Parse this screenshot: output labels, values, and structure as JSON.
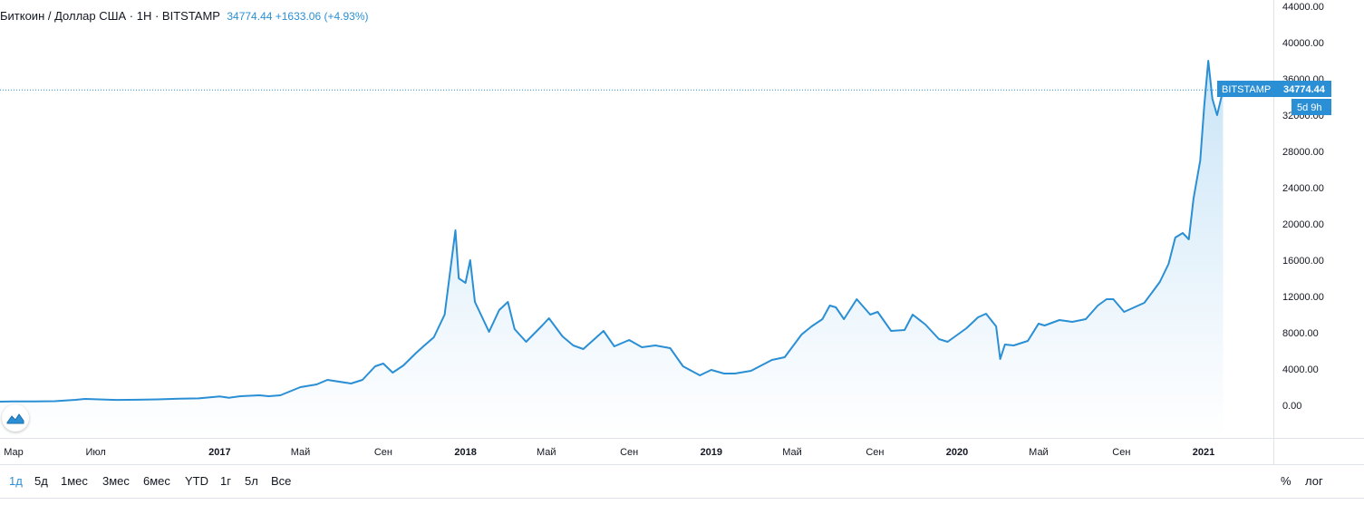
{
  "legend": {
    "symbol": "Биткоин / Доллар США · 1Н · BITSTAMP",
    "values": "34774.44 +1633.06 (+4.93%)"
  },
  "colors": {
    "line": "#2a8fd4",
    "fill_top": "#c9e4f7",
    "fill_bottom": "#ffffff",
    "label_bg": "#2a8fd4",
    "axis_border": "#e0e3eb"
  },
  "price_label": {
    "exchange": "BITSTAMP",
    "price": "34774.44",
    "countdown": "5d 9h"
  },
  "toolbar": {
    "timeframes": [
      "1д",
      "5д",
      "1мес",
      "3мес",
      "6мес",
      "YTD",
      "1г",
      "5л",
      "Все"
    ],
    "active_index": 0,
    "percent_label": "%",
    "log_label": "лог"
  },
  "logo": {
    "icon": "tradingview-logo-icon"
  },
  "chart_data": {
    "type": "area",
    "title": "Биткоин / Доллар США · 1Н · BITSTAMP",
    "ylim": [
      -3000,
      44000
    ],
    "y_ticks": [
      "44000.00",
      "40000.00",
      "36000.00",
      "32000.00",
      "28000.00",
      "24000.00",
      "20000.00",
      "16000.00",
      "12000.00",
      "8000.00",
      "4000.00",
      "0.00"
    ],
    "y_tick_values": [
      44000,
      40000,
      36000,
      32000,
      28000,
      24000,
      20000,
      16000,
      12000,
      8000,
      4000,
      0
    ],
    "x_ticks": [
      {
        "label": "Мар",
        "date": "2016-03-01",
        "year": false
      },
      {
        "label": "Июл",
        "date": "2016-07-01",
        "year": false
      },
      {
        "label": "2017",
        "date": "2017-01-01",
        "year": true
      },
      {
        "label": "Май",
        "date": "2017-05-01",
        "year": false
      },
      {
        "label": "Сен",
        "date": "2017-09-01",
        "year": false
      },
      {
        "label": "2018",
        "date": "2018-01-01",
        "year": true
      },
      {
        "label": "Май",
        "date": "2018-05-01",
        "year": false
      },
      {
        "label": "Сен",
        "date": "2018-09-01",
        "year": false
      },
      {
        "label": "2019",
        "date": "2019-01-01",
        "year": true
      },
      {
        "label": "Май",
        "date": "2019-05-01",
        "year": false
      },
      {
        "label": "Сен",
        "date": "2019-09-01",
        "year": false
      },
      {
        "label": "2020",
        "date": "2020-01-01",
        "year": true
      },
      {
        "label": "Май",
        "date": "2020-05-01",
        "year": false
      },
      {
        "label": "Сен",
        "date": "2020-09-01",
        "year": false
      },
      {
        "label": "2021",
        "date": "2021-01-01",
        "year": true
      }
    ],
    "last_price": 34774.44,
    "series": [
      {
        "x": [
          "2016-02-01",
          "2016-03-01",
          "2016-04-01",
          "2016-05-01",
          "2016-06-01",
          "2016-06-15",
          "2016-07-01",
          "2016-08-01",
          "2016-09-01",
          "2016-10-01",
          "2016-11-01",
          "2016-12-01",
          "2017-01-01",
          "2017-01-15",
          "2017-02-01",
          "2017-03-01",
          "2017-03-15",
          "2017-04-01",
          "2017-05-01",
          "2017-05-25",
          "2017-06-10",
          "2017-07-15",
          "2017-08-01",
          "2017-08-20",
          "2017-09-01",
          "2017-09-15",
          "2017-10-01",
          "2017-10-20",
          "2017-11-01",
          "2017-11-15",
          "2017-12-01",
          "2017-12-17",
          "2017-12-22",
          "2018-01-01",
          "2018-01-08",
          "2018-01-15",
          "2018-02-05",
          "2018-02-20",
          "2018-03-05",
          "2018-03-15",
          "2018-04-01",
          "2018-04-25",
          "2018-05-05",
          "2018-05-25",
          "2018-06-10",
          "2018-06-25",
          "2018-07-25",
          "2018-08-10",
          "2018-09-01",
          "2018-09-20",
          "2018-10-10",
          "2018-11-01",
          "2018-11-20",
          "2018-12-15",
          "2019-01-01",
          "2019-01-20",
          "2019-02-05",
          "2019-03-01",
          "2019-04-01",
          "2019-04-20",
          "2019-05-15",
          "2019-05-30",
          "2019-06-15",
          "2019-06-26",
          "2019-07-05",
          "2019-07-17",
          "2019-08-05",
          "2019-08-25",
          "2019-09-05",
          "2019-09-25",
          "2019-10-15",
          "2019-10-27",
          "2019-11-15",
          "2019-12-05",
          "2019-12-18",
          "2020-01-15",
          "2020-02-01",
          "2020-02-13",
          "2020-02-28",
          "2020-03-05",
          "2020-03-12",
          "2020-03-25",
          "2020-04-15",
          "2020-05-01",
          "2020-05-10",
          "2020-06-01",
          "2020-06-20",
          "2020-07-10",
          "2020-07-28",
          "2020-08-10",
          "2020-08-20",
          "2020-09-05",
          "2020-09-20",
          "2020-10-05",
          "2020-10-20",
          "2020-10-28",
          "2020-11-10",
          "2020-11-20",
          "2020-12-01",
          "2020-12-10",
          "2020-12-17",
          "2020-12-27",
          "2021-01-02",
          "2021-01-08",
          "2021-01-14",
          "2021-01-21",
          "2021-01-30"
        ],
        "y": [
          400,
          430,
          420,
          450,
          600,
          700,
          660,
          590,
          610,
          650,
          720,
          760,
          980,
          830,
          1000,
          1100,
          1000,
          1100,
          2000,
          2300,
          2800,
          2400,
          2800,
          4300,
          4600,
          3600,
          4400,
          5800,
          6600,
          7500,
          10000,
          19300,
          14000,
          13500,
          16000,
          11400,
          8100,
          10500,
          11400,
          8400,
          7000,
          8800,
          9600,
          7600,
          6600,
          6200,
          8200,
          6500,
          7200,
          6400,
          6600,
          6300,
          4300,
          3300,
          3900,
          3500,
          3500,
          3800,
          5000,
          5300,
          7800,
          8700,
          9500,
          11000,
          10800,
          9500,
          11700,
          10000,
          10300,
          8200,
          8300,
          10000,
          8900,
          7300,
          7000,
          8500,
          9700,
          10100,
          8700,
          5100,
          6700,
          6600,
          7100,
          9000,
          8800,
          9400,
          9200,
          9500,
          11000,
          11700,
          11700,
          10300,
          10800,
          11300,
          12800,
          13600,
          15600,
          18500,
          19000,
          18300,
          22800,
          27000,
          33000,
          38000,
          33800,
          32000,
          34774.44
        ]
      }
    ]
  }
}
